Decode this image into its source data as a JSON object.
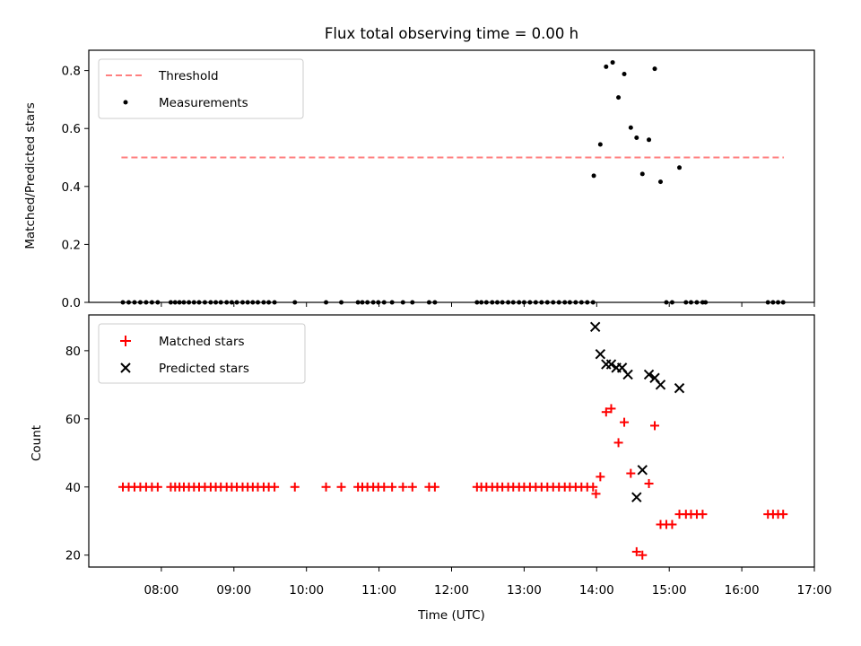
{
  "chart_data": [
    {
      "type": "scatter",
      "title": "Flux total observing time = 0.00 h",
      "xlabel": "",
      "ylabel": "Matched/Predicted stars",
      "xlim": [
        7.0,
        17.0
      ],
      "ylim": [
        0.0,
        0.87
      ],
      "yticks": [
        0.0,
        0.2,
        0.4,
        0.6,
        0.8
      ],
      "ytick_labels": [
        "0.0",
        "0.2",
        "0.4",
        "0.6",
        "0.8"
      ],
      "legend_position": "top-left",
      "threshold": {
        "name": "Threshold",
        "value": 0.5,
        "x_range": [
          7.45,
          16.58
        ],
        "color": "#ff7f7f"
      },
      "series": [
        {
          "name": "Measurements",
          "color": "#000000",
          "x": [
            7.47,
            7.55,
            7.63,
            7.71,
            7.79,
            7.87,
            7.95,
            8.13,
            8.19,
            8.25,
            8.31,
            8.38,
            8.45,
            8.52,
            8.6,
            8.68,
            8.75,
            8.82,
            8.9,
            8.97,
            9.04,
            9.12,
            9.19,
            9.26,
            9.33,
            9.41,
            9.48,
            9.56,
            9.84,
            10.27,
            10.48,
            10.71,
            10.77,
            10.84,
            10.92,
            10.99,
            11.07,
            11.18,
            11.33,
            11.46,
            11.69,
            11.77,
            12.35,
            12.41,
            12.48,
            12.56,
            12.63,
            12.7,
            12.78,
            12.85,
            12.93,
            13.0,
            13.08,
            13.16,
            13.24,
            13.32,
            13.4,
            13.48,
            13.56,
            13.63,
            13.71,
            13.79,
            13.87,
            13.95,
            13.96,
            14.05,
            14.13,
            14.22,
            14.3,
            14.38,
            14.47,
            14.55,
            14.63,
            14.72,
            14.8,
            14.88,
            14.96,
            15.04,
            15.14,
            15.23,
            15.3,
            15.38,
            15.46,
            15.5,
            16.36,
            16.43,
            16.5,
            16.57
          ],
          "y": [
            0,
            0,
            0,
            0,
            0,
            0,
            0,
            0,
            0,
            0,
            0,
            0,
            0,
            0,
            0,
            0,
            0,
            0,
            0,
            0,
            0,
            0,
            0,
            0,
            0,
            0,
            0,
            0,
            0,
            0,
            0,
            0,
            0,
            0,
            0,
            0,
            0,
            0,
            0,
            0,
            0,
            0,
            0,
            0,
            0,
            0,
            0,
            0,
            0,
            0,
            0,
            0,
            0,
            0,
            0,
            0,
            0,
            0,
            0,
            0,
            0,
            0,
            0,
            0,
            0.437,
            0.545,
            0.813,
            0.828,
            0.707,
            0.788,
            0.603,
            0.568,
            0.443,
            0.561,
            0.806,
            0.416,
            0,
            0,
            0.465,
            0,
            0,
            0,
            0,
            0,
            0,
            0,
            0,
            0
          ]
        }
      ]
    },
    {
      "type": "scatter",
      "title": "",
      "xlabel": "Time (UTC)",
      "ylabel": "Count",
      "xlim": [
        7.0,
        17.0
      ],
      "ylim": [
        16.5,
        90.5
      ],
      "yticks": [
        20,
        40,
        60,
        80
      ],
      "ytick_labels": [
        "20",
        "40",
        "60",
        "80"
      ],
      "xticks": [
        8,
        9,
        10,
        11,
        12,
        13,
        14,
        15,
        16,
        17
      ],
      "xtick_labels": [
        "08:00",
        "09:00",
        "10:00",
        "11:00",
        "12:00",
        "13:00",
        "14:00",
        "15:00",
        "16:00",
        "17:00"
      ],
      "legend_position": "top-left",
      "series": [
        {
          "name": "Matched stars",
          "marker": "plus",
          "color": "#ff0000",
          "x": [
            7.47,
            7.55,
            7.63,
            7.71,
            7.79,
            7.87,
            7.95,
            8.13,
            8.19,
            8.25,
            8.31,
            8.38,
            8.45,
            8.52,
            8.6,
            8.68,
            8.75,
            8.82,
            8.9,
            8.97,
            9.04,
            9.12,
            9.19,
            9.26,
            9.33,
            9.41,
            9.48,
            9.56,
            9.84,
            10.27,
            10.48,
            10.71,
            10.77,
            10.84,
            10.92,
            10.99,
            11.07,
            11.18,
            11.33,
            11.46,
            11.69,
            11.77,
            12.35,
            12.41,
            12.48,
            12.56,
            12.63,
            12.7,
            12.78,
            12.85,
            12.93,
            13.0,
            13.08,
            13.16,
            13.24,
            13.32,
            13.4,
            13.48,
            13.56,
            13.63,
            13.71,
            13.79,
            13.87,
            13.95,
            13.99,
            14.05,
            14.13,
            14.2,
            14.3,
            14.38,
            14.47,
            14.55,
            14.63,
            14.72,
            14.8,
            14.88,
            14.96,
            15.04,
            15.14,
            15.23,
            15.3,
            15.38,
            15.46,
            16.36,
            16.43,
            16.5,
            16.57
          ],
          "y": [
            40,
            40,
            40,
            40,
            40,
            40,
            40,
            40,
            40,
            40,
            40,
            40,
            40,
            40,
            40,
            40,
            40,
            40,
            40,
            40,
            40,
            40,
            40,
            40,
            40,
            40,
            40,
            40,
            40,
            40,
            40,
            40,
            40,
            40,
            40,
            40,
            40,
            40,
            40,
            40,
            40,
            40,
            40,
            40,
            40,
            40,
            40,
            40,
            40,
            40,
            40,
            40,
            40,
            40,
            40,
            40,
            40,
            40,
            40,
            40,
            40,
            40,
            40,
            40,
            38,
            43,
            62,
            63,
            53,
            59,
            44,
            21,
            20,
            41,
            58,
            29,
            29,
            29,
            32,
            32,
            32,
            32,
            32,
            32,
            32,
            32,
            32
          ]
        },
        {
          "name": "Predicted stars",
          "marker": "x",
          "color": "#000000",
          "x": [
            13.98,
            14.05,
            14.13,
            14.2,
            14.27,
            14.35,
            14.43,
            14.55,
            14.63,
            14.72,
            14.8,
            14.88,
            15.14
          ],
          "y": [
            87,
            79,
            76,
            76,
            75,
            75,
            73,
            37,
            45,
            73,
            72,
            70,
            69
          ]
        }
      ]
    }
  ]
}
